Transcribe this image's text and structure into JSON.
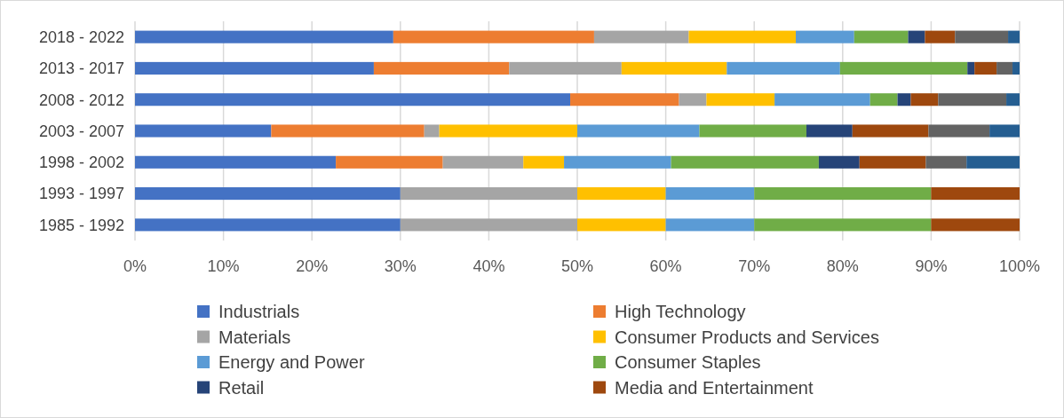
{
  "chart_data": {
    "type": "bar",
    "orientation": "horizontal",
    "stacked": true,
    "grid": "x",
    "legend": "bottom",
    "categories": [
      "2018 - 2022",
      "2013 - 2017",
      "2008 - 2012",
      "2003 - 2007",
      "1998 - 2002",
      "1993 - 1997",
      "1985 - 1992"
    ],
    "xlim": [
      0,
      100
    ],
    "xticks": [
      {
        "value": 0,
        "label": "0%"
      },
      {
        "value": 10,
        "label": "10%"
      },
      {
        "value": 20,
        "label": "20%"
      },
      {
        "value": 30,
        "label": "30%"
      },
      {
        "value": 40,
        "label": "40%"
      },
      {
        "value": 50,
        "label": "50%"
      },
      {
        "value": 60,
        "label": "60%"
      },
      {
        "value": 70,
        "label": "70%"
      },
      {
        "value": 80,
        "label": "80%"
      },
      {
        "value": 90,
        "label": "90%"
      },
      {
        "value": 100,
        "label": "100%"
      }
    ],
    "series": [
      {
        "name": "Industrials",
        "color": "#4472c4",
        "values": [
          29.2,
          27.0,
          49.2,
          15.4,
          22.7,
          30,
          30
        ]
      },
      {
        "name": "High Technology",
        "color": "#ed7d31",
        "values": [
          22.7,
          15.3,
          12.3,
          17.3,
          12.1,
          0,
          0
        ]
      },
      {
        "name": "Materials",
        "color": "#a5a5a5",
        "values": [
          10.7,
          12.7,
          3.1,
          1.7,
          9.1,
          20,
          20
        ]
      },
      {
        "name": "Consumer Products and Services",
        "color": "#ffc000",
        "values": [
          12.1,
          11.9,
          7.7,
          15.6,
          4.6,
          10,
          10
        ]
      },
      {
        "name": "Energy and Power",
        "color": "#5b9bd5",
        "values": [
          6.6,
          12.8,
          10.8,
          13.8,
          12.1,
          10,
          10
        ]
      },
      {
        "name": "Consumer Staples",
        "color": "#70ad47",
        "values": [
          6.1,
          14.4,
          3.1,
          12.1,
          16.7,
          20,
          20
        ]
      },
      {
        "name": "Retail",
        "color": "#264478",
        "values": [
          1.9,
          0.8,
          1.5,
          5.2,
          4.6,
          0,
          0
        ]
      },
      {
        "name": "Media and Entertainment",
        "color": "#9e480e",
        "values": [
          3.4,
          2.5,
          3.1,
          8.6,
          7.5,
          10,
          10
        ]
      },
      {
        "color": "#636363",
        "values": [
          6.0,
          1.8,
          7.7,
          6.9,
          4.6,
          0,
          0
        ]
      },
      {
        "color": "#255e91",
        "values": [
          1.3,
          0.8,
          1.5,
          3.4,
          6.0,
          0,
          0
        ]
      }
    ]
  }
}
